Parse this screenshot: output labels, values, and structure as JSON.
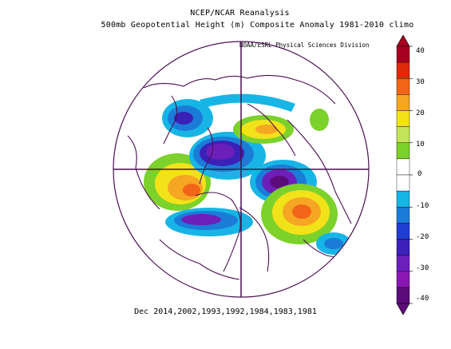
{
  "title": {
    "line1": "NCEP/NCAR Reanalysis",
    "line2": "500mb Geopotential Height (m) Composite Anomaly 1981-2010 climo"
  },
  "credit": "NOAA/ESRL Physical Sciences Division",
  "footer": "Dec 2014,2002,1993,1992,1984,1983,1981",
  "colorbar": {
    "tick_labels": [
      "40",
      "30",
      "20",
      "10",
      "0",
      "-10",
      "-20",
      "-30",
      "-40"
    ],
    "colors": [
      "#a8001f",
      "#dd2a08",
      "#f26518",
      "#f5a623",
      "#f2e21a",
      "#c3e35a",
      "#7cd12a",
      "#ffffff",
      "#ffffff",
      "#17b5e6",
      "#1b7cd8",
      "#1f3ed0",
      "#3b21b7",
      "#6d1fba",
      "#8a17b1",
      "#5c0c7a"
    ]
  },
  "map": {
    "projection": "north-polar-stereographic",
    "field": "500mb geopotential height anomaly",
    "anomaly_centers": [
      {
        "sign": "positive",
        "region": "north-pacific"
      },
      {
        "sign": "positive",
        "region": "north-atlantic"
      },
      {
        "sign": "positive",
        "region": "siberia"
      },
      {
        "sign": "negative",
        "region": "arctic"
      },
      {
        "sign": "negative",
        "region": "western-north-america"
      },
      {
        "sign": "negative",
        "region": "europe"
      }
    ]
  }
}
